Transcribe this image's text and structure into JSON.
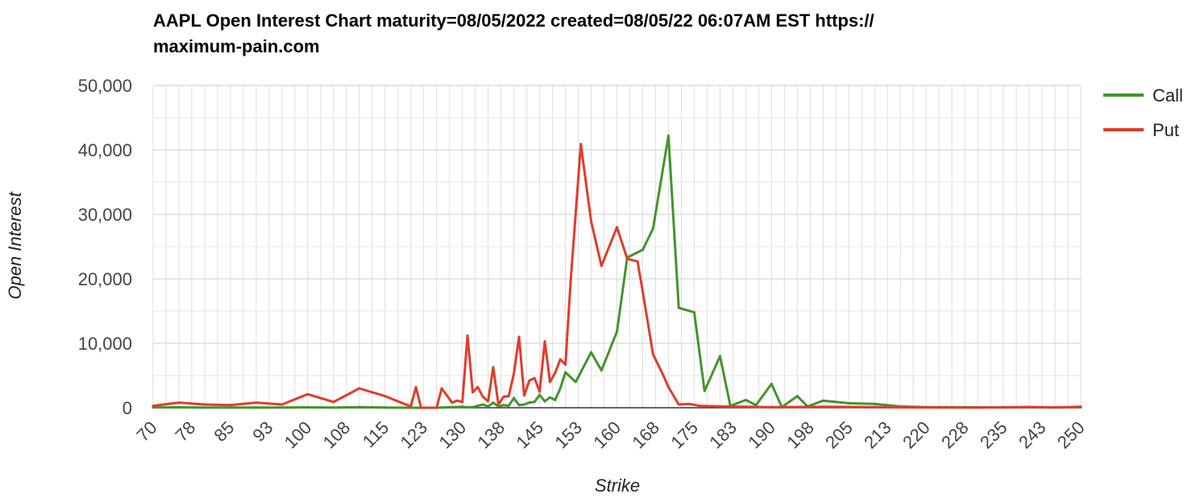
{
  "chart_data": {
    "type": "line",
    "title": "AAPL Open Interest Chart maturity=08/05/2022 created=08/05/22 06:07AM EST https:// maximum-pain.com",
    "title_lines": [
      "AAPL Open Interest Chart maturity=08/05/2022 created=08/05/22 06:07AM EST https://",
      "maximum-pain.com"
    ],
    "xlabel": "Strike",
    "ylabel": "Open Interest",
    "xlim": [
      70,
      250
    ],
    "ylim": [
      0,
      50000
    ],
    "y_ticks": [
      0,
      10000,
      20000,
      30000,
      40000,
      50000
    ],
    "y_tick_labels": [
      "0",
      "10,000",
      "20,000",
      "30,000",
      "40,000",
      "50,000"
    ],
    "x_tick_labels": [
      "70",
      "78",
      "85",
      "93",
      "100",
      "108",
      "115",
      "123",
      "130",
      "138",
      "145",
      "153",
      "160",
      "168",
      "175",
      "183",
      "190",
      "198",
      "205",
      "213",
      "220",
      "228",
      "235",
      "243",
      "250"
    ],
    "grid": true,
    "legend_position": "right",
    "series": [
      {
        "name": "Call",
        "color": "#43942b",
        "points": [
          [
            70,
            50
          ],
          [
            75,
            60
          ],
          [
            80,
            40
          ],
          [
            85,
            30
          ],
          [
            90,
            40
          ],
          [
            95,
            30
          ],
          [
            100,
            60
          ],
          [
            105,
            30
          ],
          [
            110,
            90
          ],
          [
            115,
            30
          ],
          [
            120,
            0
          ],
          [
            125,
            0
          ],
          [
            128,
            100
          ],
          [
            130,
            150
          ],
          [
            131,
            80
          ],
          [
            132,
            90
          ],
          [
            133,
            300
          ],
          [
            134,
            500
          ],
          [
            135,
            200
          ],
          [
            136,
            800
          ],
          [
            137,
            200
          ],
          [
            138,
            400
          ],
          [
            139,
            300
          ],
          [
            140,
            1500
          ],
          [
            141,
            400
          ],
          [
            142,
            500
          ],
          [
            143,
            800
          ],
          [
            144,
            900
          ],
          [
            145,
            2000
          ],
          [
            146,
            1000
          ],
          [
            147,
            1600
          ],
          [
            148,
            1200
          ],
          [
            149,
            3000
          ],
          [
            150,
            5500
          ],
          [
            152,
            4000
          ],
          [
            155,
            8600
          ],
          [
            157,
            5800
          ],
          [
            160,
            11800
          ],
          [
            162,
            23300
          ],
          [
            165,
            24500
          ],
          [
            167,
            27800
          ],
          [
            170,
            42200
          ],
          [
            172,
            15500
          ],
          [
            175,
            14800
          ],
          [
            177,
            2600
          ],
          [
            180,
            8000
          ],
          [
            182,
            300
          ],
          [
            185,
            1200
          ],
          [
            187,
            400
          ],
          [
            190,
            3700
          ],
          [
            192,
            100
          ],
          [
            195,
            1800
          ],
          [
            197,
            200
          ],
          [
            200,
            1100
          ],
          [
            205,
            700
          ],
          [
            210,
            600
          ],
          [
            215,
            200
          ],
          [
            220,
            100
          ],
          [
            225,
            80
          ],
          [
            230,
            60
          ],
          [
            235,
            50
          ],
          [
            240,
            60
          ],
          [
            245,
            50
          ],
          [
            250,
            80
          ]
        ]
      },
      {
        "name": "Put",
        "color": "#e03c2c",
        "points": [
          [
            70,
            300
          ],
          [
            75,
            800
          ],
          [
            80,
            500
          ],
          [
            85,
            400
          ],
          [
            90,
            800
          ],
          [
            95,
            500
          ],
          [
            100,
            2100
          ],
          [
            105,
            900
          ],
          [
            110,
            3000
          ],
          [
            115,
            1800
          ],
          [
            120,
            200
          ],
          [
            121,
            3200
          ],
          [
            122,
            0
          ],
          [
            125,
            0
          ],
          [
            126,
            3000
          ],
          [
            128,
            800
          ],
          [
            129,
            1100
          ],
          [
            130,
            900
          ],
          [
            131,
            11200
          ],
          [
            132,
            2400
          ],
          [
            133,
            3200
          ],
          [
            134,
            1700
          ],
          [
            135,
            1000
          ],
          [
            136,
            6300
          ],
          [
            137,
            500
          ],
          [
            138,
            1700
          ],
          [
            139,
            1800
          ],
          [
            140,
            5300
          ],
          [
            141,
            11000
          ],
          [
            142,
            1900
          ],
          [
            143,
            4200
          ],
          [
            144,
            4600
          ],
          [
            145,
            2500
          ],
          [
            146,
            10300
          ],
          [
            147,
            4000
          ],
          [
            148,
            5400
          ],
          [
            149,
            7500
          ],
          [
            150,
            6700
          ],
          [
            151,
            19500
          ],
          [
            153,
            40900
          ],
          [
            155,
            28900
          ],
          [
            157,
            22000
          ],
          [
            160,
            28000
          ],
          [
            162,
            23100
          ],
          [
            164,
            22700
          ],
          [
            165,
            18000
          ],
          [
            167,
            8300
          ],
          [
            169,
            5000
          ],
          [
            170,
            3200
          ],
          [
            172,
            500
          ],
          [
            174,
            600
          ],
          [
            176,
            300
          ],
          [
            180,
            200
          ],
          [
            185,
            150
          ],
          [
            190,
            100
          ],
          [
            200,
            150
          ],
          [
            210,
            100
          ],
          [
            220,
            50
          ],
          [
            230,
            30
          ],
          [
            240,
            120
          ],
          [
            245,
            50
          ],
          [
            250,
            150
          ]
        ]
      }
    ]
  }
}
